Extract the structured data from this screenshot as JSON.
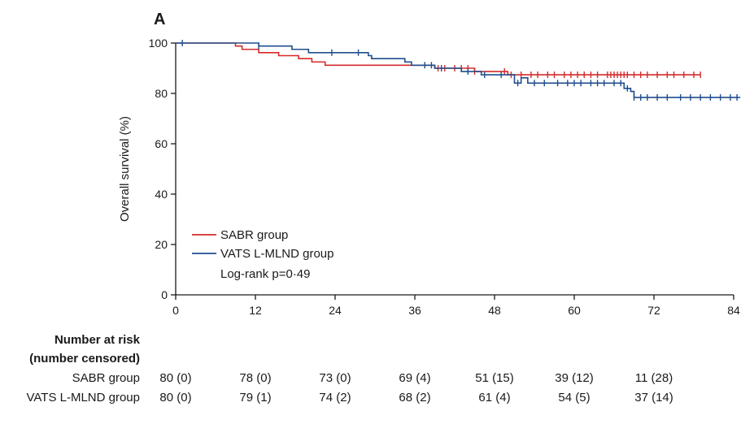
{
  "chart_data": {
    "type": "line",
    "panel_label": "A",
    "ylabel": "Overall survival (%)",
    "xlim": [
      0,
      84
    ],
    "ylim": [
      0,
      100
    ],
    "x_ticks": [
      0,
      12,
      24,
      36,
      48,
      60,
      72,
      84
    ],
    "y_ticks": [
      0,
      20,
      40,
      60,
      80,
      100
    ],
    "legend_position": "lower-left",
    "annotation": "Log-rank p=0·49",
    "series": [
      {
        "name": "SABR group",
        "color": "#d62b2b",
        "steps": [
          [
            0,
            100
          ],
          [
            9,
            98.8
          ],
          [
            10,
            97.5
          ],
          [
            12.5,
            96.2
          ],
          [
            15.5,
            95
          ],
          [
            18.5,
            93.8
          ],
          [
            20.5,
            92.5
          ],
          [
            22.5,
            91.2
          ],
          [
            39,
            90
          ],
          [
            45,
            88.7
          ],
          [
            50,
            87.4
          ],
          [
            79,
            87.4
          ]
        ],
        "censored": [
          39.5,
          40.5,
          42,
          43,
          44,
          45,
          49.5,
          50.5,
          52,
          53.5,
          54.5,
          56,
          57,
          58.5,
          59.5,
          60.5,
          61.5,
          62.5,
          63.5,
          65,
          65.5,
          66,
          66.5,
          67,
          67.5,
          68,
          69,
          70,
          71,
          72.5,
          74,
          75,
          76.5,
          78,
          79
        ]
      },
      {
        "name": "VATS L-MLND group",
        "color": "#1f4e8c",
        "steps": [
          [
            0,
            100
          ],
          [
            12.5,
            98.8
          ],
          [
            17.5,
            97.5
          ],
          [
            20,
            96.2
          ],
          [
            29,
            95
          ],
          [
            29.5,
            93.8
          ],
          [
            34.5,
            92.5
          ],
          [
            35.5,
            91.2
          ],
          [
            39,
            90
          ],
          [
            43,
            88.7
          ],
          [
            46,
            87.4
          ],
          [
            52,
            86.2
          ],
          [
            51,
            84.1
          ],
          [
            53,
            84.1
          ],
          [
            67.5,
            82
          ],
          [
            68.5,
            80.8
          ],
          [
            69,
            78.4
          ],
          [
            85,
            78.4
          ]
        ],
        "censored": [
          1,
          12.5,
          23.5,
          27.5,
          37.5,
          38.5,
          40,
          44,
          46.5,
          49,
          51.5,
          54,
          55.5,
          57.5,
          59,
          60,
          61,
          62.5,
          63.5,
          64.5,
          66,
          67,
          68,
          69,
          70,
          71,
          72.5,
          74,
          76,
          77.5,
          79,
          80.5,
          82,
          83.5,
          84.5
        ]
      }
    ],
    "risk_table": {
      "title_line1": "Number at risk",
      "title_line2": "(number censored)",
      "time_points": [
        0,
        12,
        24,
        36,
        48,
        60,
        72
      ],
      "rows": [
        {
          "label": "SABR group",
          "values": [
            "80 (0)",
            "78 (0)",
            "73 (0)",
            "69 (4)",
            "51 (15)",
            "39 (12)",
            "11 (28)"
          ]
        },
        {
          "label": "VATS L-MLND group",
          "values": [
            "80 (0)",
            "79 (1)",
            "74 (2)",
            "68 (2)",
            "61 (4)",
            "54 (5)",
            "37 (14)"
          ]
        }
      ]
    }
  }
}
